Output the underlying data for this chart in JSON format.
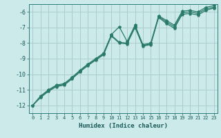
{
  "title": "",
  "xlabel": "Humidex (Indice chaleur)",
  "bg_color": "#cceaea",
  "grid_color": "#aacccc",
  "line_color": "#2a7a6a",
  "xlim": [
    -0.5,
    23.5
  ],
  "ylim": [
    -12.5,
    -5.5
  ],
  "xticks": [
    0,
    1,
    2,
    3,
    4,
    5,
    6,
    7,
    8,
    9,
    10,
    11,
    12,
    13,
    14,
    15,
    16,
    17,
    18,
    19,
    20,
    21,
    22,
    23
  ],
  "yticks": [
    -12,
    -11,
    -10,
    -9,
    -8,
    -7,
    -6
  ],
  "line1_x": [
    0,
    1,
    2,
    3,
    4,
    5,
    6,
    7,
    8,
    9,
    10,
    11,
    12,
    13,
    14,
    15,
    16,
    17,
    18,
    19,
    20,
    21,
    22,
    23
  ],
  "line1_y": [
    -12.0,
    -11.5,
    -11.1,
    -10.8,
    -10.7,
    -10.3,
    -9.85,
    -9.45,
    -9.1,
    -8.75,
    -7.55,
    -8.0,
    -8.05,
    -7.0,
    -8.2,
    -8.1,
    -6.35,
    -6.75,
    -7.05,
    -6.15,
    -6.1,
    -6.2,
    -5.9,
    -5.75
  ],
  "line2_x": [
    0,
    1,
    2,
    3,
    4,
    5,
    6,
    7,
    8,
    9,
    10,
    11,
    12,
    13,
    14,
    15,
    16,
    17,
    18,
    19,
    20,
    21,
    22,
    23
  ],
  "line2_y": [
    -12.0,
    -11.45,
    -11.05,
    -10.75,
    -10.65,
    -10.25,
    -9.8,
    -9.4,
    -9.05,
    -8.7,
    -7.5,
    -7.95,
    -8.0,
    -6.9,
    -8.15,
    -8.05,
    -6.3,
    -6.65,
    -6.95,
    -6.05,
    -6.0,
    -6.1,
    -5.8,
    -5.7
  ],
  "line3_x": [
    0,
    1,
    2,
    3,
    4,
    5,
    6,
    7,
    8,
    9,
    10,
    11,
    12,
    13,
    14,
    15,
    16,
    17,
    18,
    19,
    20,
    21,
    22,
    23
  ],
  "line3_y": [
    -12.0,
    -11.4,
    -11.0,
    -10.7,
    -10.6,
    -10.2,
    -9.75,
    -9.35,
    -9.0,
    -8.65,
    -7.45,
    -6.95,
    -7.9,
    -6.85,
    -8.1,
    -8.0,
    -6.25,
    -6.55,
    -6.85,
    -5.95,
    -5.9,
    -6.0,
    -5.7,
    -5.6
  ]
}
